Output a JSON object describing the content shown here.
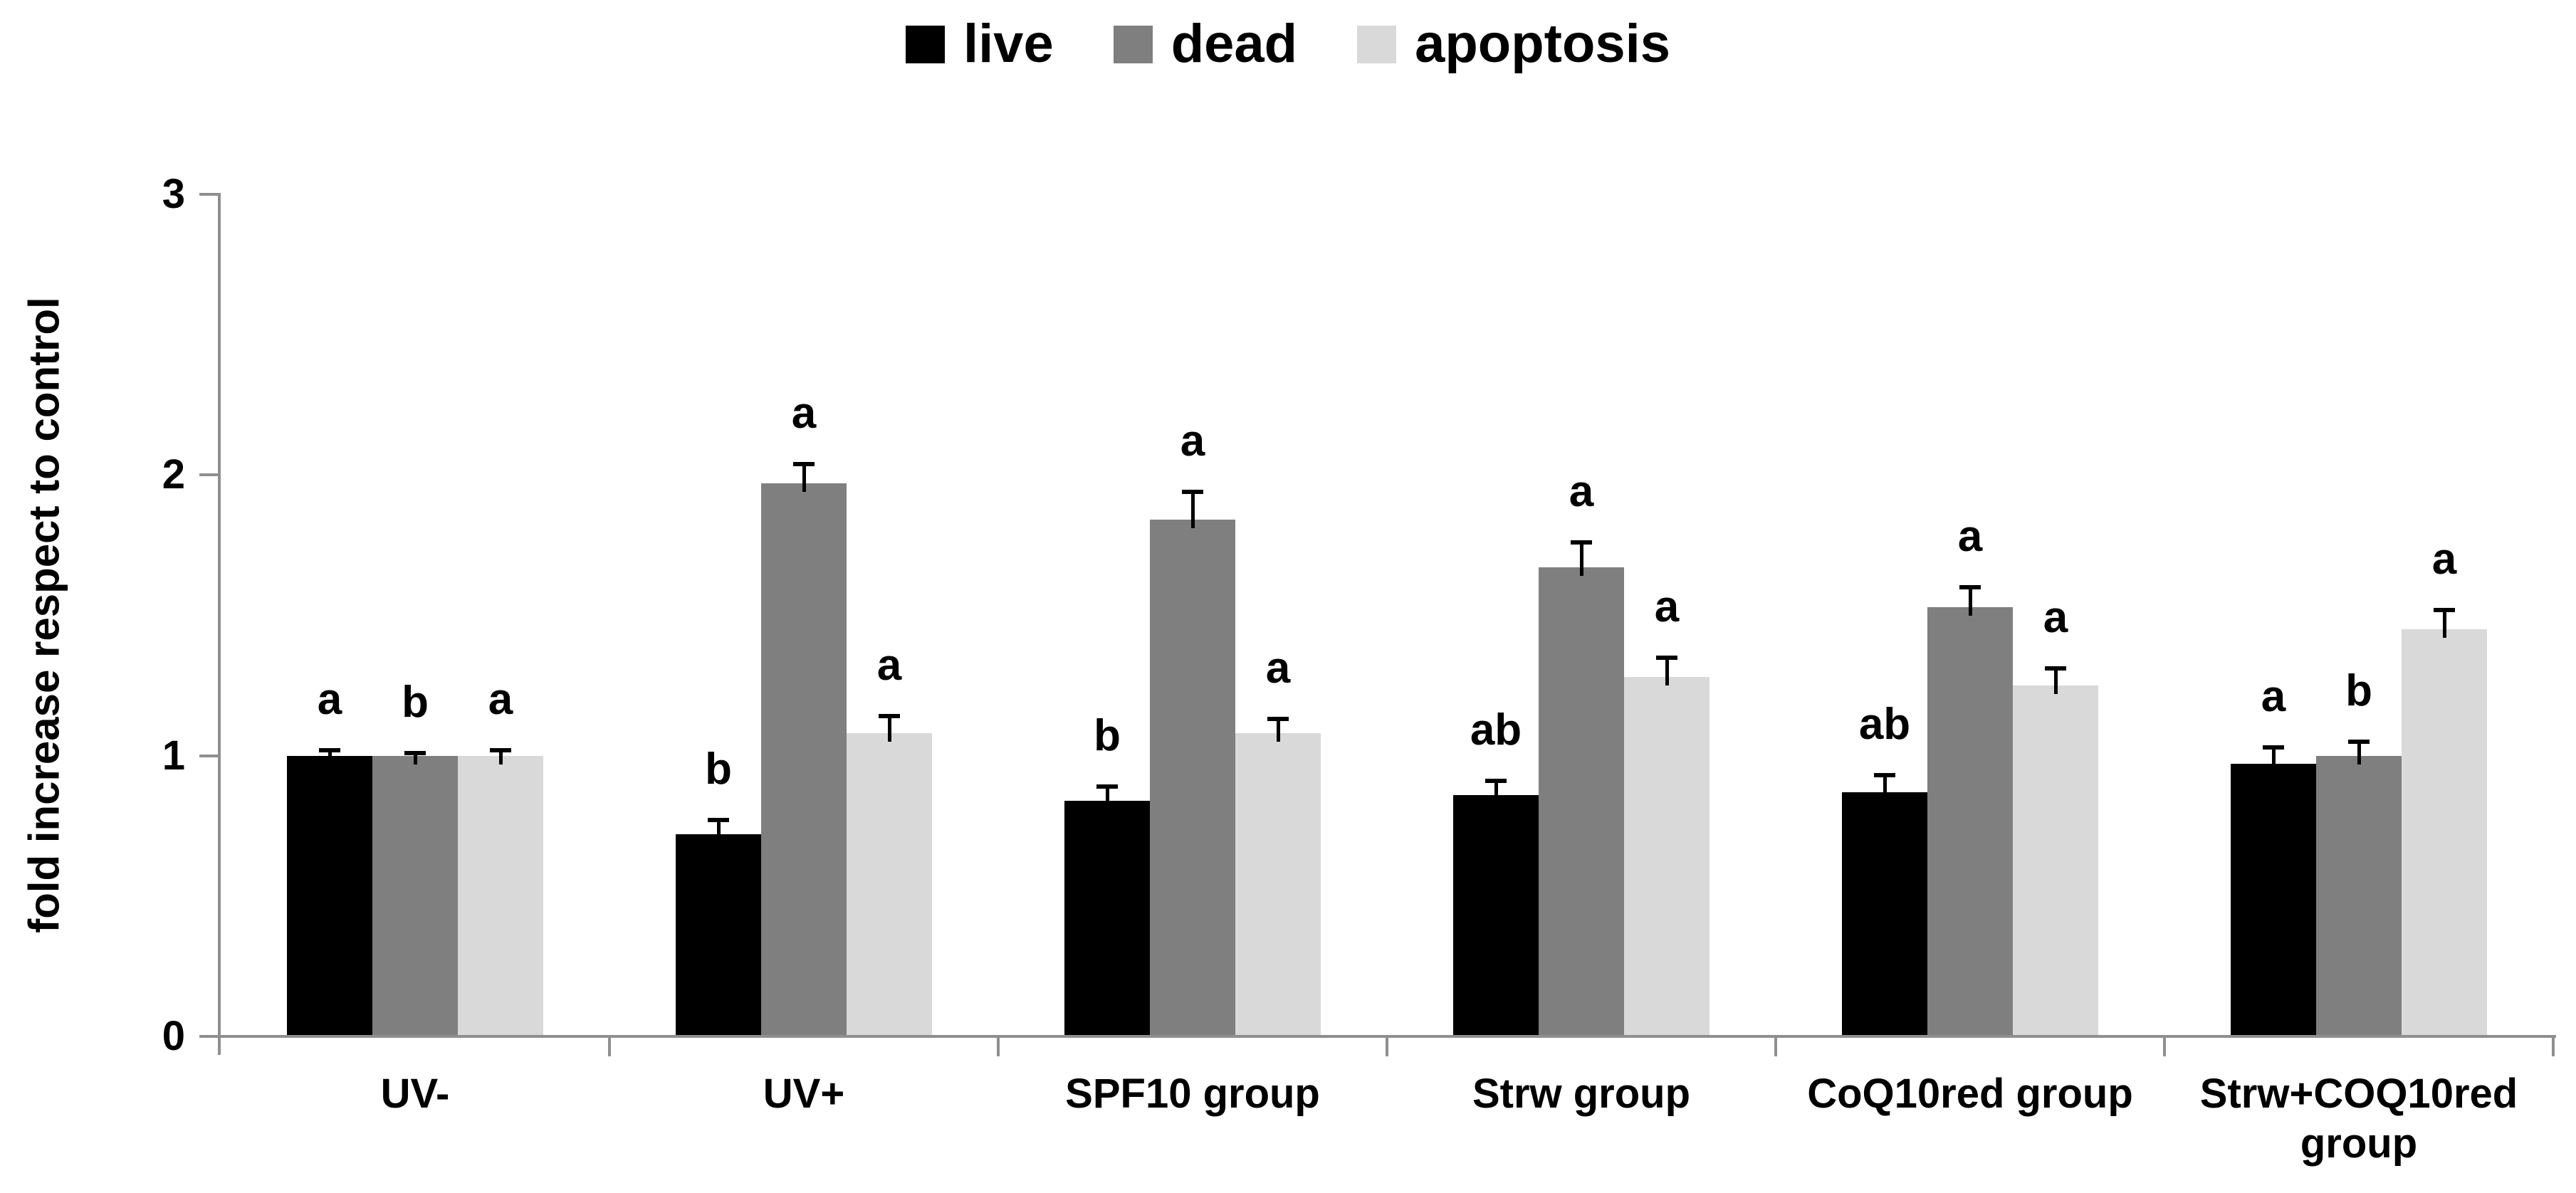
{
  "page": {
    "background": "#ffffff"
  },
  "legend": {
    "position": "top",
    "items": [
      {
        "label": "live",
        "color": "#000000"
      },
      {
        "label": "dead",
        "color": "#7f7f7f"
      },
      {
        "label": "apoptosis",
        "color": "#d9d9d9"
      }
    ]
  },
  "chart_data": {
    "type": "bar",
    "title": "",
    "categories": [
      "UV-",
      "UV+",
      "SPF10 group",
      "Strw group",
      "CoQ10red group",
      "Strw+COQ10red group"
    ],
    "series": [
      {
        "name": "live",
        "color": "#000000",
        "values": [
          1.0,
          0.72,
          0.84,
          0.86,
          0.87,
          0.97
        ],
        "errors": [
          0.02,
          0.05,
          0.05,
          0.05,
          0.06,
          0.06
        ],
        "sig_letters": [
          "a",
          "b",
          "b",
          "ab",
          "ab",
          "a"
        ]
      },
      {
        "name": "dead",
        "color": "#7f7f7f",
        "values": [
          1.0,
          1.97,
          1.84,
          1.67,
          1.53,
          1.0
        ],
        "errors": [
          0.01,
          0.07,
          0.1,
          0.09,
          0.07,
          0.05
        ],
        "sig_letters": [
          "b",
          "a",
          "a",
          "a",
          "a",
          "b"
        ]
      },
      {
        "name": "apoptosis",
        "color": "#d9d9d9",
        "values": [
          1.0,
          1.08,
          1.08,
          1.28,
          1.25,
          1.45
        ],
        "errors": [
          0.02,
          0.06,
          0.05,
          0.07,
          0.06,
          0.07
        ],
        "sig_letters": [
          "a",
          "a",
          "a",
          "a",
          "a",
          "a"
        ]
      }
    ],
    "xlabel": "",
    "ylabel": "fold increase respect to control",
    "ylim": [
      0,
      3
    ],
    "yticks": [
      0,
      1,
      2,
      3
    ],
    "ytick_labels": [
      "0",
      "1",
      "2",
      "3"
    ],
    "grid": false,
    "error_bars": "upper",
    "legend_position": "top"
  },
  "axis": {
    "color": "#8f8f8f"
  }
}
